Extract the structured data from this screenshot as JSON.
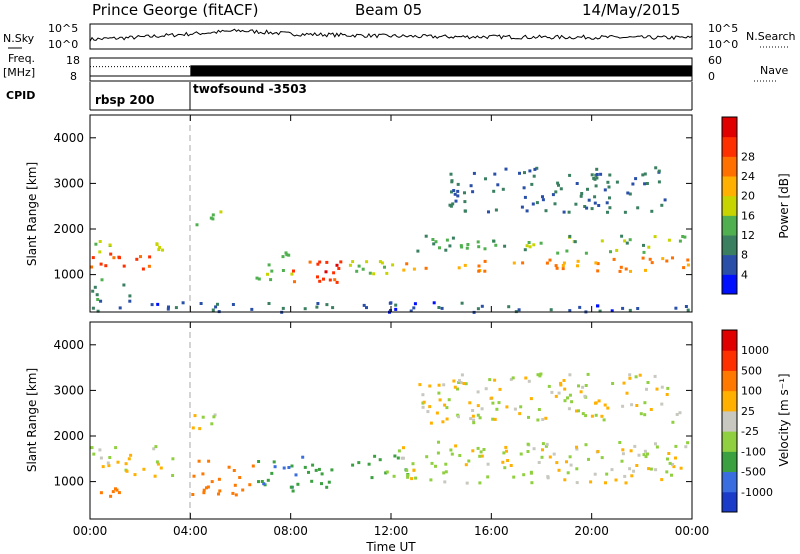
{
  "header": {
    "station": "Prince George (fitACF)",
    "beam": "Beam 05",
    "date": "14/May/2015"
  },
  "chart_data": [
    {
      "type": "line",
      "name": "noise-panel",
      "left_label": "N.Sky",
      "right_label": "N.Search",
      "left_ticks": [
        "10^5",
        "10^0"
      ],
      "right_ticks": [
        "10^5",
        "10^0"
      ],
      "x": [
        "00:00",
        "02:00",
        "04:00",
        "06:00",
        "08:00",
        "10:00",
        "12:00",
        "14:00",
        "16:00",
        "18:00",
        "20:00",
        "22:00",
        "24:00"
      ],
      "sky_level": [
        0.3,
        0.4,
        0.55,
        0.7,
        0.55,
        0.5,
        0.45,
        0.42,
        0.42,
        0.4,
        0.4,
        0.38,
        0.38
      ]
    },
    {
      "type": "line",
      "name": "freq-panel",
      "left_label": "Freq.",
      "left_unit": "[MHz]",
      "right_label": "Nave",
      "left_ticks": [
        "18",
        "8"
      ],
      "right_ticks": [
        "60",
        "0"
      ],
      "freq_before_MHz": 10.5,
      "freq_after_MHz": 10.5,
      "nave_before": 50,
      "nave_after": 55
    },
    {
      "type": "table",
      "name": "cpid-panel",
      "label": "CPID",
      "segments": [
        {
          "start": "00:00",
          "name": "rbsp 200"
        },
        {
          "start": "04:00",
          "name": "twofsound -3503"
        }
      ]
    },
    {
      "type": "heatmap",
      "name": "power",
      "ylabel": "Slant Range [km]",
      "ylim": [
        180,
        4500
      ],
      "yticks": [
        "1000",
        "2000",
        "3000",
        "4000"
      ],
      "colorbar_label": "Power [dB]",
      "colorbar_ticks": [
        "4",
        "8",
        "12",
        "16",
        "20",
        "24",
        "28"
      ],
      "colorbar_colors": [
        "#0010ff",
        "#2a4fa8",
        "#3a8060",
        "#50b050",
        "#c8d400",
        "#ffb000",
        "#ff7000",
        "#ff3000",
        "#e00000"
      ],
      "regions": [
        {
          "t0": 0.0,
          "t1": 3.3,
          "r0": 1150,
          "r1": 1520,
          "level": 26
        },
        {
          "t0": 0.0,
          "t1": 3.3,
          "r0": 1520,
          "r1": 1780,
          "level": 14
        },
        {
          "t0": 0.0,
          "t1": 1.6,
          "r0": 420,
          "r1": 950,
          "level": 9
        },
        {
          "t0": 4.0,
          "t1": 5.2,
          "r0": 2100,
          "r1": 2500,
          "level": 11
        },
        {
          "t0": 6.5,
          "t1": 8.0,
          "r0": 900,
          "r1": 1600,
          "level": 14
        },
        {
          "t0": 8.0,
          "t1": 10.2,
          "r0": 720,
          "r1": 1400,
          "level": 27
        },
        {
          "t0": 10.2,
          "t1": 12.5,
          "r0": 1000,
          "r1": 1500,
          "level": 15
        },
        {
          "t0": 12.0,
          "t1": 24.0,
          "r0": 1100,
          "r1": 1400,
          "level": 22
        },
        {
          "t0": 13.0,
          "t1": 24.0,
          "r0": 1500,
          "r1": 1900,
          "level": 12
        },
        {
          "t0": 14.0,
          "t1": 23.0,
          "r0": 2400,
          "r1": 3400,
          "level": 6
        },
        {
          "t0": 0.0,
          "t1": 24.0,
          "r0": 200,
          "r1": 420,
          "level": 4
        }
      ]
    },
    {
      "type": "heatmap",
      "name": "velocity",
      "ylabel": "Slant Range [km]",
      "ylim": [
        180,
        4500
      ],
      "yticks": [
        "1000",
        "2000",
        "3000",
        "4000"
      ],
      "colorbar_label": "Velocity [m s⁻¹]",
      "colorbar_ticks": [
        "1000",
        "500",
        "100",
        "25",
        "-25",
        "-100",
        "-500",
        "-1000"
      ],
      "colorbar_colors": [
        "#1a3cc8",
        "#3a6ee0",
        "#3aa040",
        "#90d040",
        "#c8c8c0",
        "#ffb000",
        "#ff7800",
        "#ff3000",
        "#e00000"
      ],
      "regions": [
        {
          "t0": 0.0,
          "t1": 3.5,
          "r0": 1150,
          "r1": 1800,
          "vel": 0
        },
        {
          "t0": 0.0,
          "t1": 1.2,
          "r0": 420,
          "r1": 900,
          "vel": -300
        },
        {
          "t0": 4.0,
          "t1": 6.5,
          "r0": 700,
          "r1": 1500,
          "vel": -350
        },
        {
          "t0": 6.5,
          "t1": 8.5,
          "r0": 800,
          "r1": 1600,
          "vel": 300
        },
        {
          "t0": 8.5,
          "t1": 10.5,
          "r0": 900,
          "r1": 1450,
          "vel": 150
        },
        {
          "t0": 10.5,
          "t1": 13.0,
          "r0": 1100,
          "r1": 1600,
          "vel": 150
        },
        {
          "t0": 12.0,
          "t1": 24.0,
          "r0": 1000,
          "r1": 1900,
          "vel": 0
        },
        {
          "t0": 13.0,
          "t1": 23.5,
          "r0": 2300,
          "r1": 3400,
          "vel": 0
        },
        {
          "t0": 4.0,
          "t1": 5.0,
          "r0": 1900,
          "r1": 2500,
          "vel": 0
        }
      ]
    }
  ],
  "xaxis": {
    "label": "Time UT",
    "ticks": [
      "00:00",
      "04:00",
      "08:00",
      "12:00",
      "16:00",
      "20:00",
      "00:00"
    ]
  }
}
